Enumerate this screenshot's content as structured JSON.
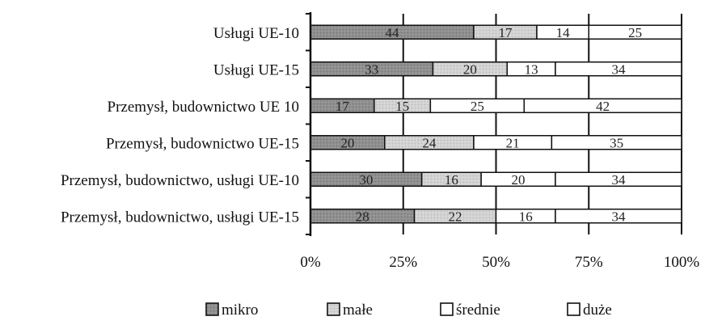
{
  "chart_data": {
    "type": "bar",
    "orientation": "horizontal",
    "stacked": "percent",
    "categories": [
      "Usługi UE-10",
      "Usługi UE-15",
      "Przemysł, budownictwo UE 10",
      "Przemysł, budownictwo UE-15",
      "Przemysł, budownictwo, usługi UE-10",
      "Przemysł, budownictwo, usługi UE-15"
    ],
    "series": [
      {
        "name": "mikro",
        "values": [
          44,
          33,
          17,
          20,
          30,
          28
        ]
      },
      {
        "name": "małe",
        "values": [
          17,
          20,
          15,
          24,
          16,
          22
        ]
      },
      {
        "name": "średnie",
        "values": [
          14,
          13,
          25,
          21,
          20,
          16
        ]
      },
      {
        "name": "duże",
        "values": [
          25,
          34,
          42,
          35,
          34,
          34
        ]
      }
    ],
    "x_ticks": [
      "0%",
      "25%",
      "50%",
      "75%",
      "100%"
    ],
    "xlim": [
      0,
      100
    ],
    "grid": true,
    "legend_position": "bottom",
    "colors": [
      "#8c8c8c",
      "#cfcfcf",
      "#ffffff",
      "#ffffff"
    ]
  }
}
